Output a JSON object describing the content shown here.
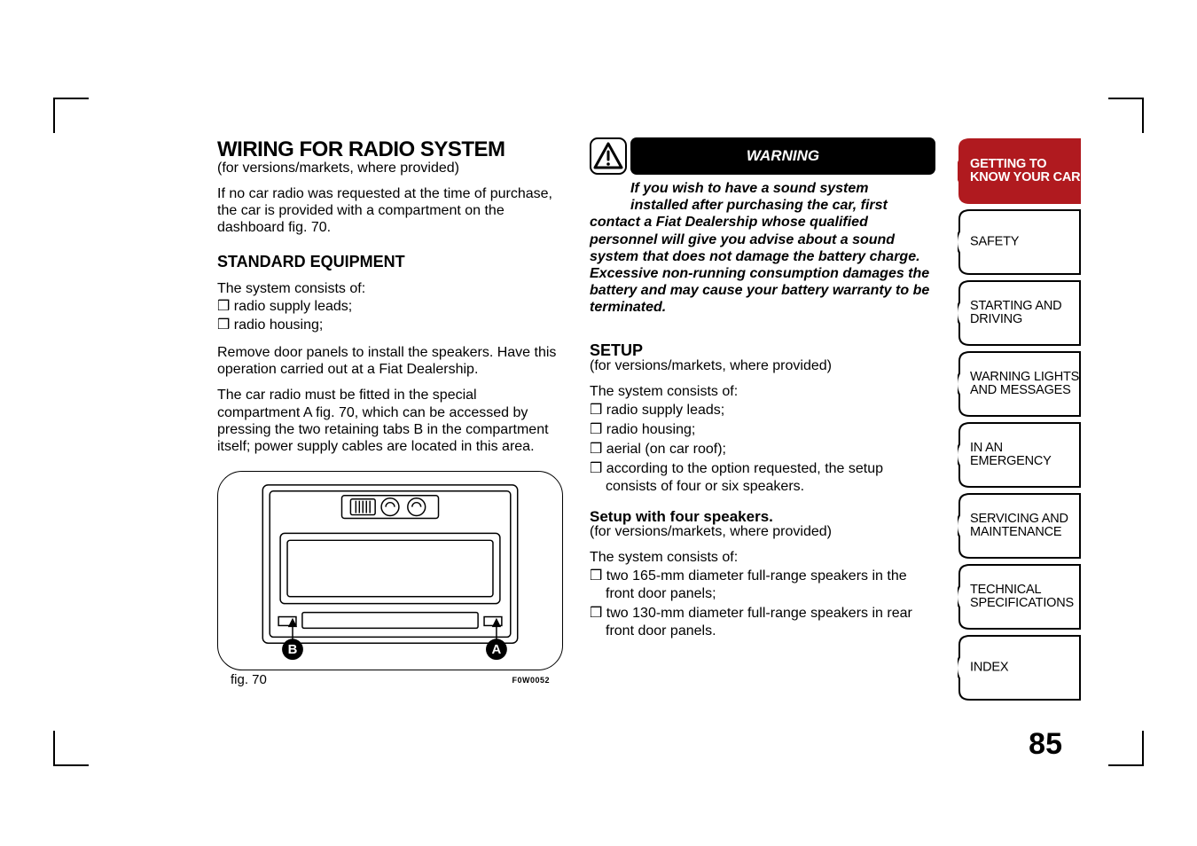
{
  "colors": {
    "ink": "#000000",
    "paper": "#ffffff",
    "accent": "#b01a1f"
  },
  "left": {
    "title": "WIRING FOR RADIO SYSTEM",
    "title_sub": "(for versions/markets, where provided)",
    "intro": "If no car radio was requested at the time of purchase, the car is provided with a compartment on the dashboard fig. 70.",
    "h2": "STANDARD EQUIPMENT",
    "p1": "The system consists of:",
    "li1": "radio supply leads;",
    "li2": "radio housing;",
    "p2": "Remove door panels to install the speakers. Have this operation carried out at a Fiat Dealership.",
    "p3": "The car radio must be fitted in the special compartment A fig. 70, which can be accessed by pressing the two retaining tabs B in the compartment itself; power supply cables are located in this area.",
    "fig_label": "fig. 70",
    "fig_code": "F0W0052",
    "fig_letter_a": "A",
    "fig_letter_b": "B"
  },
  "right": {
    "warn_title": "WARNING",
    "warn_text_1": "If you wish to have a sound system",
    "warn_text_2": "installed after purchasing the car, first",
    "warn_text_rest": "contact a Fiat Dealership whose qualified personnel will give you advise about a sound system that does not damage the battery charge. Excessive non-running consumption damages the battery and may cause your battery warranty to be terminated.",
    "h3": "SETUP",
    "h3_sub": "(for versions/markets, where provided)",
    "p1": "The system consists of:",
    "li1": "radio supply leads;",
    "li2": "radio housing;",
    "li3": "aerial (on car roof);",
    "li4": "according to the option requested, the setup consists of four or six speakers.",
    "h4": "Setup with four speakers.",
    "h4_sub": "(for versions/markets, where provided)",
    "p2": "The system consists of:",
    "li5": "two 165-mm diameter full-range speakers in the front door panels;",
    "li6": "two 130-mm diameter full-range speakers in rear front door panels."
  },
  "tabs": [
    {
      "l1": "GETTING TO",
      "l2": "KNOW YOUR CAR",
      "active": true
    },
    {
      "l1": "SAFETY",
      "l2": "",
      "active": false
    },
    {
      "l1": "STARTING AND",
      "l2": "DRIVING",
      "active": false
    },
    {
      "l1": "WARNING LIGHTS",
      "l2": "AND MESSAGES",
      "active": false
    },
    {
      "l1": "IN AN EMERGENCY",
      "l2": "",
      "active": false
    },
    {
      "l1": "SERVICING AND",
      "l2": "MAINTENANCE",
      "active": false
    },
    {
      "l1": "TECHNICAL",
      "l2": "SPECIFICATIONS",
      "active": false
    },
    {
      "l1": "INDEX",
      "l2": "",
      "active": false
    }
  ],
  "page_number": "85"
}
